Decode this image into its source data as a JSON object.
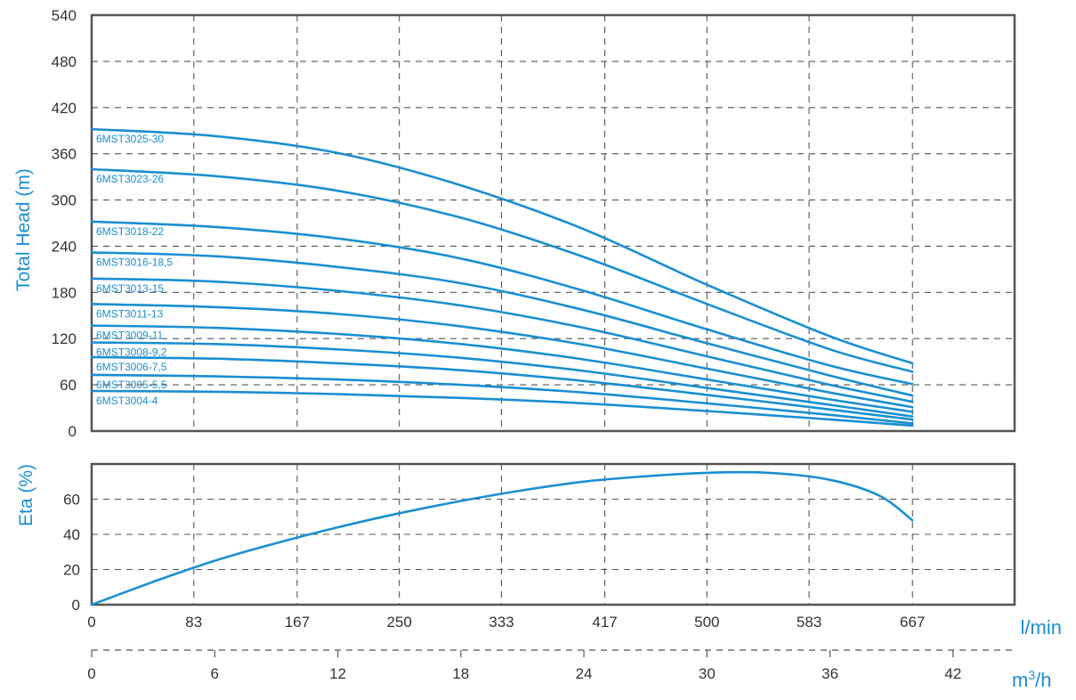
{
  "colors": {
    "curve": "#1a8fd1",
    "frame": "#555555",
    "grid": "#555555",
    "text": "#333333",
    "accent": "#1a8fd1"
  },
  "chart_data": [
    {
      "type": "line",
      "ylabel": "Total Head (m)",
      "ylim": [
        0,
        540
      ],
      "yticks": [
        0,
        60,
        120,
        180,
        240,
        300,
        360,
        420,
        480,
        540
      ],
      "xlim": [
        0,
        750
      ],
      "xticks": [
        0,
        83,
        167,
        250,
        333,
        417,
        500,
        583,
        667
      ],
      "grid": true,
      "series": [
        {
          "name": "6MST3025-30",
          "x": [
            0,
            100,
            200,
            300,
            400,
            500,
            600,
            667
          ],
          "y": [
            392,
            383,
            361,
            319,
            262,
            190,
            123,
            88
          ]
        },
        {
          "name": "6MST3023-26",
          "x": [
            0,
            100,
            200,
            300,
            400,
            500,
            600,
            667
          ],
          "y": [
            340,
            331,
            312,
            277,
            226,
            165,
            106,
            77
          ]
        },
        {
          "name": "6MST3018-22",
          "x": [
            0,
            100,
            200,
            300,
            400,
            500,
            600,
            667
          ],
          "y": [
            272,
            265,
            250,
            224,
            182,
            132,
            85,
            61
          ]
        },
        {
          "name": "6MST3016-18,5",
          "x": [
            0,
            100,
            200,
            300,
            400,
            500,
            600,
            667
          ],
          "y": [
            232,
            227,
            213,
            192,
            157,
            114,
            72,
            46
          ]
        },
        {
          "name": "6MST3013-15",
          "x": [
            0,
            100,
            200,
            300,
            400,
            500,
            600,
            667
          ],
          "y": [
            198,
            194,
            182,
            163,
            134,
            97,
            60,
            38
          ]
        },
        {
          "name": "6MST3011-13",
          "x": [
            0,
            100,
            200,
            300,
            400,
            500,
            600,
            667
          ],
          "y": [
            165,
            161,
            152,
            136,
            112,
            81,
            50,
            31
          ]
        },
        {
          "name": "6MST3009-11",
          "x": [
            0,
            100,
            200,
            300,
            400,
            500,
            600,
            667
          ],
          "y": [
            137,
            134,
            126,
            113,
            93,
            67,
            41,
            25
          ]
        },
        {
          "name": "6MST3008-9,2",
          "x": [
            0,
            100,
            200,
            300,
            400,
            500,
            600,
            667
          ],
          "y": [
            115,
            113,
            106,
            95,
            78,
            56,
            34,
            19
          ]
        },
        {
          "name": "6MST3006-7,5",
          "x": [
            0,
            100,
            200,
            300,
            400,
            500,
            600,
            667
          ],
          "y": [
            96,
            94,
            88,
            79,
            65,
            47,
            28,
            15
          ]
        },
        {
          "name": "6MST3005-5,5",
          "x": [
            0,
            100,
            200,
            300,
            400,
            500,
            600,
            667
          ],
          "y": [
            73,
            71,
            67,
            60,
            50,
            36,
            21,
            10
          ]
        },
        {
          "name": "6MST3004-4",
          "x": [
            0,
            100,
            200,
            300,
            400,
            500,
            600,
            667
          ],
          "y": [
            52,
            51,
            48,
            43,
            36,
            26,
            15,
            7
          ]
        }
      ]
    },
    {
      "type": "line",
      "ylabel": "Eta (%)",
      "ylim": [
        0,
        80
      ],
      "yticks": [
        0,
        20,
        40,
        60
      ],
      "xlim": [
        0,
        750
      ],
      "grid": true,
      "series": [
        {
          "x": [
            0,
            50,
            100,
            150,
            200,
            250,
            300,
            350,
            400,
            450,
            500,
            550,
            600,
            640,
            667
          ],
          "y": [
            0,
            13,
            25,
            35,
            44,
            52,
            59,
            65,
            70,
            73,
            75,
            75,
            71,
            62,
            48
          ]
        }
      ]
    }
  ],
  "x_axes": {
    "lpm": {
      "unit": "l/min",
      "ticks": [
        "0",
        "83",
        "167",
        "250",
        "333",
        "417",
        "500",
        "583",
        "667"
      ]
    },
    "m3h": {
      "unit_base": "m",
      "unit_sup": "3",
      "unit_tail": "/h",
      "ticks": [
        "0",
        "6",
        "12",
        "18",
        "24",
        "30",
        "36",
        "42"
      ]
    }
  }
}
